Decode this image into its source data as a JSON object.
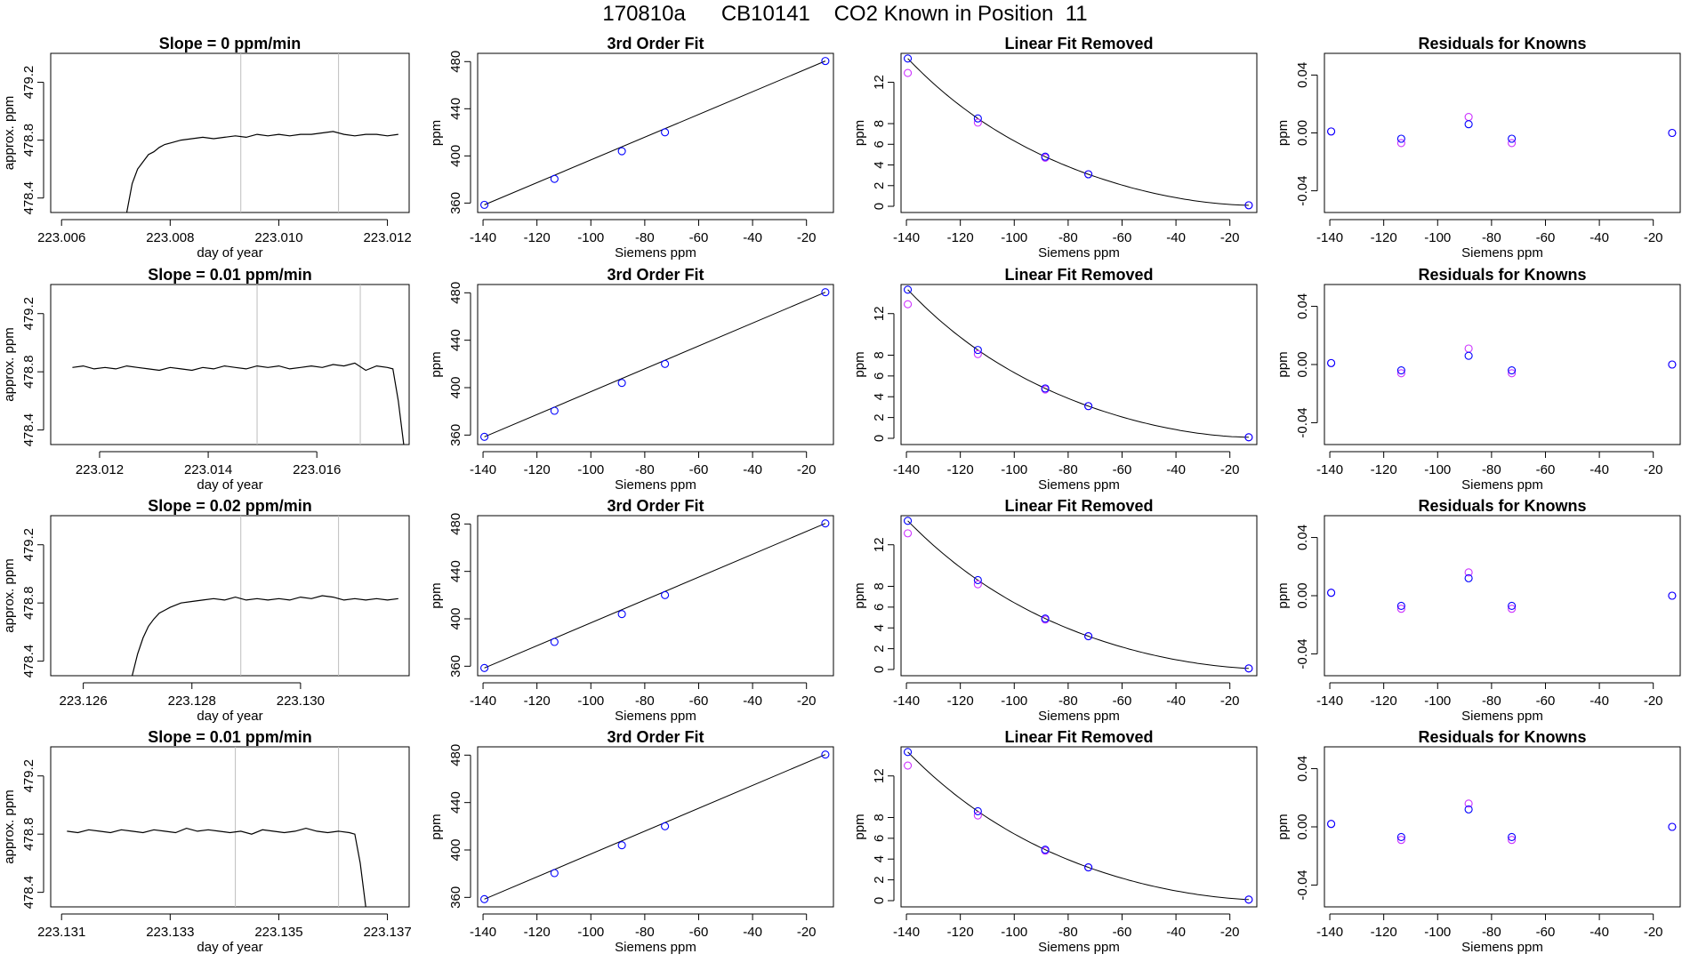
{
  "title": "170810a      CB10141    CO2 Known in Position  11",
  "colors": {
    "line": "#000000",
    "vline": "#bebebe",
    "measured": "#0000ff",
    "reference": "#cc33ff"
  },
  "chart_data": [
    {
      "type": "line",
      "title": "Slope =  0  ppm/min",
      "xlabel": "day of year",
      "ylabel": "approx. ppm",
      "xlim": [
        223.0058,
        223.0124
      ],
      "ylim": [
        478.3,
        479.4
      ],
      "xticks": [
        223.006,
        223.008,
        223.01,
        223.012
      ],
      "xtick_labels": [
        "223.006",
        "223.008",
        "223.010",
        "223.012"
      ],
      "yticks": [
        478.4,
        478.8,
        479.2
      ],
      "ytick_labels": [
        "478.4",
        "478.8",
        "479.2"
      ],
      "vlines": [
        223.0093,
        223.0111
      ],
      "x": [
        223.0072,
        223.0073,
        223.0074,
        223.0075,
        223.0076,
        223.0077,
        223.0078,
        223.0079,
        223.008,
        223.0082,
        223.0084,
        223.0086,
        223.0088,
        223.009,
        223.0092,
        223.0094,
        223.0096,
        223.0098,
        223.01,
        223.0102,
        223.0104,
        223.0106,
        223.0108,
        223.011,
        223.0112,
        223.0114,
        223.0116,
        223.0118,
        223.012,
        223.0122
      ],
      "y": [
        478.3,
        478.5,
        478.6,
        478.65,
        478.7,
        478.72,
        478.75,
        478.77,
        478.78,
        478.8,
        478.81,
        478.82,
        478.81,
        478.82,
        478.83,
        478.82,
        478.84,
        478.83,
        478.84,
        478.83,
        478.84,
        478.84,
        478.85,
        478.86,
        478.84,
        478.83,
        478.84,
        478.84,
        478.83,
        478.84
      ]
    },
    {
      "type": "scatter",
      "title": "3rd Order Fit",
      "xlabel": "Siemens ppm",
      "ylabel": "ppm",
      "xlim": [
        -142,
        -10
      ],
      "ylim": [
        352,
        487
      ],
      "xticks": [
        -140,
        -120,
        -100,
        -80,
        -60,
        -40,
        -20
      ],
      "xtick_labels": [
        "-140",
        "-120",
        "-100",
        "-80",
        "-60",
        "-40",
        "-20"
      ],
      "yticks": [
        360,
        400,
        440,
        480
      ],
      "ytick_labels": [
        "360",
        "400",
        "440",
        "480"
      ],
      "x": [
        -139.5,
        -113.5,
        -88.5,
        -72.5,
        -13
      ],
      "y": [
        358.5,
        380.5,
        404,
        420,
        480.5
      ],
      "fit": "cubic"
    },
    {
      "type": "scatter",
      "title": "Linear Fit Removed",
      "xlabel": "Siemens ppm",
      "ylabel": "ppm",
      "xlim": [
        -142,
        -10
      ],
      "ylim": [
        -0.6,
        14.8
      ],
      "xticks": [
        -140,
        -120,
        -100,
        -80,
        -60,
        -40,
        -20
      ],
      "xtick_labels": [
        "-140",
        "-120",
        "-100",
        "-80",
        "-60",
        "-40",
        "-20"
      ],
      "yticks": [
        0,
        2,
        4,
        6,
        8,
        12
      ],
      "ytick_labels": [
        "0",
        "2",
        "4",
        "6",
        "8",
        "12"
      ],
      "x": [
        -139.5,
        -113.5,
        -88.5,
        -72.5,
        -13
      ],
      "y": [
        14.3,
        8.5,
        4.8,
        3.1,
        0.1
      ],
      "y_ref": [
        12.9,
        8.1,
        4.7,
        3.1,
        0.1
      ]
    },
    {
      "type": "scatter",
      "title": "Residuals for Knowns",
      "xlabel": "Siemens ppm",
      "ylabel": "ppm",
      "xlim": [
        -142,
        -10
      ],
      "ylim": [
        -0.055,
        0.055
      ],
      "xticks": [
        -140,
        -120,
        -100,
        -80,
        -60,
        -40,
        -20
      ],
      "xtick_labels": [
        "-140",
        "-120",
        "-100",
        "-80",
        "-60",
        "-40",
        "-20"
      ],
      "yticks": [
        -0.04,
        0.0,
        0.04
      ],
      "ytick_labels": [
        "-0.04",
        "0.00",
        "0.04"
      ],
      "x": [
        -139.5,
        -113.5,
        -88.5,
        -72.5,
        -13
      ],
      "y": [
        0.001,
        -0.004,
        0.006,
        -0.004,
        0.0
      ],
      "y_ref": [
        0.001,
        -0.007,
        0.011,
        -0.007,
        0.0
      ]
    },
    {
      "type": "line",
      "title": "Slope =  0.01  ppm/min",
      "xlabel": "day of year",
      "ylabel": "approx. ppm",
      "xlim": [
        223.0111,
        223.0177
      ],
      "ylim": [
        478.3,
        479.4
      ],
      "xticks": [
        223.012,
        223.014,
        223.016
      ],
      "xtick_labels": [
        "223.012",
        "223.014",
        "223.016"
      ],
      "yticks": [
        478.4,
        478.8,
        479.2
      ],
      "ytick_labels": [
        "478.4",
        "478.8",
        "479.2"
      ],
      "vlines": [
        223.0149,
        223.0168
      ],
      "x": [
        223.0115,
        223.0117,
        223.0119,
        223.0121,
        223.0123,
        223.0125,
        223.0127,
        223.0129,
        223.0131,
        223.0133,
        223.0135,
        223.0137,
        223.0139,
        223.0141,
        223.0143,
        223.0145,
        223.0147,
        223.0149,
        223.0151,
        223.0153,
        223.0155,
        223.0157,
        223.0159,
        223.0161,
        223.0163,
        223.0165,
        223.0167,
        223.0169,
        223.0171,
        223.0173,
        223.0174,
        223.0175,
        223.0176
      ],
      "y": [
        478.83,
        478.84,
        478.82,
        478.83,
        478.82,
        478.84,
        478.83,
        478.82,
        478.81,
        478.83,
        478.82,
        478.81,
        478.83,
        478.82,
        478.84,
        478.83,
        478.82,
        478.84,
        478.83,
        478.84,
        478.82,
        478.83,
        478.84,
        478.83,
        478.85,
        478.84,
        478.86,
        478.81,
        478.84,
        478.83,
        478.82,
        478.6,
        478.3
      ]
    },
    {
      "type": "scatter",
      "title": "3rd Order Fit",
      "xlabel": "Siemens ppm",
      "ylabel": "ppm",
      "xlim": [
        -142,
        -10
      ],
      "ylim": [
        352,
        487
      ],
      "xticks": [
        -140,
        -120,
        -100,
        -80,
        -60,
        -40,
        -20
      ],
      "xtick_labels": [
        "-140",
        "-120",
        "-100",
        "-80",
        "-60",
        "-40",
        "-20"
      ],
      "yticks": [
        360,
        400,
        440,
        480
      ],
      "ytick_labels": [
        "360",
        "400",
        "440",
        "480"
      ],
      "x": [
        -139.5,
        -113.5,
        -88.5,
        -72.5,
        -13
      ],
      "y": [
        358.5,
        380.5,
        404,
        420,
        480.5
      ],
      "fit": "cubic"
    },
    {
      "type": "scatter",
      "title": "Linear Fit Removed",
      "xlabel": "Siemens ppm",
      "ylabel": "ppm",
      "xlim": [
        -142,
        -10
      ],
      "ylim": [
        -0.6,
        14.8
      ],
      "xticks": [
        -140,
        -120,
        -100,
        -80,
        -60,
        -40,
        -20
      ],
      "xtick_labels": [
        "-140",
        "-120",
        "-100",
        "-80",
        "-60",
        "-40",
        "-20"
      ],
      "yticks": [
        0,
        2,
        4,
        6,
        8,
        12
      ],
      "ytick_labels": [
        "0",
        "2",
        "4",
        "6",
        "8",
        "12"
      ],
      "x": [
        -139.5,
        -113.5,
        -88.5,
        -72.5,
        -13
      ],
      "y": [
        14.3,
        8.5,
        4.8,
        3.1,
        0.1
      ],
      "y_ref": [
        12.9,
        8.1,
        4.7,
        3.1,
        0.1
      ]
    },
    {
      "type": "scatter",
      "title": "Residuals for Knowns",
      "xlabel": "Siemens ppm",
      "ylabel": "ppm",
      "xlim": [
        -142,
        -10
      ],
      "ylim": [
        -0.055,
        0.055
      ],
      "xticks": [
        -140,
        -120,
        -100,
        -80,
        -60,
        -40,
        -20
      ],
      "xtick_labels": [
        "-140",
        "-120",
        "-100",
        "-80",
        "-60",
        "-40",
        "-20"
      ],
      "yticks": [
        -0.04,
        0.0,
        0.04
      ],
      "ytick_labels": [
        "-0.04",
        "0.00",
        "0.04"
      ],
      "x": [
        -139.5,
        -113.5,
        -88.5,
        -72.5,
        -13
      ],
      "y": [
        0.001,
        -0.004,
        0.006,
        -0.004,
        0.0
      ],
      "y_ref": [
        0.001,
        -0.006,
        0.011,
        -0.006,
        0.0
      ]
    },
    {
      "type": "line",
      "title": "Slope =  0.02  ppm/min",
      "xlabel": "day of year",
      "ylabel": "approx. ppm",
      "xlim": [
        223.1254,
        223.132
      ],
      "ylim": [
        478.3,
        479.4
      ],
      "xticks": [
        223.126,
        223.128,
        223.13
      ],
      "xtick_labels": [
        "223.126",
        "223.128",
        "223.130"
      ],
      "yticks": [
        478.4,
        478.8,
        479.2
      ],
      "ytick_labels": [
        "478.4",
        "478.8",
        "479.2"
      ],
      "vlines": [
        223.1289,
        223.1307
      ],
      "x": [
        223.1269,
        223.127,
        223.1271,
        223.1272,
        223.1273,
        223.1274,
        223.1275,
        223.1276,
        223.1278,
        223.128,
        223.1282,
        223.1284,
        223.1286,
        223.1288,
        223.129,
        223.1292,
        223.1294,
        223.1296,
        223.1298,
        223.13,
        223.1302,
        223.1304,
        223.1306,
        223.1308,
        223.131,
        223.1312,
        223.1314,
        223.1316,
        223.1318
      ],
      "y": [
        478.3,
        478.45,
        478.56,
        478.64,
        478.69,
        478.73,
        478.75,
        478.77,
        478.8,
        478.81,
        478.82,
        478.83,
        478.82,
        478.84,
        478.82,
        478.83,
        478.82,
        478.83,
        478.82,
        478.84,
        478.83,
        478.85,
        478.84,
        478.82,
        478.83,
        478.82,
        478.83,
        478.82,
        478.83
      ]
    },
    {
      "type": "scatter",
      "title": "3rd Order Fit",
      "xlabel": "Siemens ppm",
      "ylabel": "ppm",
      "xlim": [
        -142,
        -10
      ],
      "ylim": [
        352,
        487
      ],
      "xticks": [
        -140,
        -120,
        -100,
        -80,
        -60,
        -40,
        -20
      ],
      "xtick_labels": [
        "-140",
        "-120",
        "-100",
        "-80",
        "-60",
        "-40",
        "-20"
      ],
      "yticks": [
        360,
        400,
        440,
        480
      ],
      "ytick_labels": [
        "360",
        "400",
        "440",
        "480"
      ],
      "x": [
        -139.5,
        -113.5,
        -88.5,
        -72.5,
        -13
      ],
      "y": [
        358.5,
        380.5,
        404,
        420,
        480.5
      ],
      "fit": "cubic"
    },
    {
      "type": "scatter",
      "title": "Linear Fit Removed",
      "xlabel": "Siemens ppm",
      "ylabel": "ppm",
      "xlim": [
        -142,
        -10
      ],
      "ylim": [
        -0.6,
        14.8
      ],
      "xticks": [
        -140,
        -120,
        -100,
        -80,
        -60,
        -40,
        -20
      ],
      "xtick_labels": [
        "-140",
        "-120",
        "-100",
        "-80",
        "-60",
        "-40",
        "-20"
      ],
      "yticks": [
        0,
        2,
        4,
        6,
        8,
        12
      ],
      "ytick_labels": [
        "0",
        "2",
        "4",
        "6",
        "8",
        "12"
      ],
      "x": [
        -139.5,
        -113.5,
        -88.5,
        -72.5,
        -13
      ],
      "y": [
        14.3,
        8.6,
        4.9,
        3.2,
        0.1
      ],
      "y_ref": [
        13.1,
        8.2,
        4.8,
        3.2,
        0.1
      ]
    },
    {
      "type": "scatter",
      "title": "Residuals for Knowns",
      "xlabel": "Siemens ppm",
      "ylabel": "ppm",
      "xlim": [
        -142,
        -10
      ],
      "ylim": [
        -0.055,
        0.055
      ],
      "xticks": [
        -140,
        -120,
        -100,
        -80,
        -60,
        -40,
        -20
      ],
      "xtick_labels": [
        "-140",
        "-120",
        "-100",
        "-80",
        "-60",
        "-40",
        "-20"
      ],
      "yticks": [
        -0.04,
        0.0,
        0.04
      ],
      "ytick_labels": [
        "-0.04",
        "0.00",
        "0.04"
      ],
      "x": [
        -139.5,
        -113.5,
        -88.5,
        -72.5,
        -13
      ],
      "y": [
        0.002,
        -0.007,
        0.012,
        -0.007,
        0.0
      ],
      "y_ref": [
        0.002,
        -0.009,
        0.016,
        -0.009,
        0.0
      ]
    },
    {
      "type": "line",
      "title": "Slope =  0.01  ppm/min",
      "xlabel": "day of year",
      "ylabel": "approx. ppm",
      "xlim": [
        223.1308,
        223.1374
      ],
      "ylim": [
        478.3,
        479.4
      ],
      "xticks": [
        223.131,
        223.133,
        223.135,
        223.137
      ],
      "xtick_labels": [
        "223.131",
        "223.133",
        "223.135",
        "223.137"
      ],
      "yticks": [
        478.4,
        478.8,
        479.2
      ],
      "ytick_labels": [
        "478.4",
        "478.8",
        "479.2"
      ],
      "vlines": [
        223.1342,
        223.1361
      ],
      "x": [
        223.1311,
        223.1313,
        223.1315,
        223.1317,
        223.1319,
        223.1321,
        223.1323,
        223.1325,
        223.1327,
        223.1329,
        223.1331,
        223.1333,
        223.1335,
        223.1337,
        223.1339,
        223.1341,
        223.1343,
        223.1345,
        223.1347,
        223.1349,
        223.1351,
        223.1353,
        223.1355,
        223.1357,
        223.1359,
        223.1361,
        223.1363,
        223.1364,
        223.1365,
        223.1366
      ],
      "y": [
        478.82,
        478.81,
        478.83,
        478.82,
        478.81,
        478.83,
        478.82,
        478.81,
        478.83,
        478.82,
        478.81,
        478.84,
        478.82,
        478.83,
        478.82,
        478.81,
        478.82,
        478.8,
        478.83,
        478.82,
        478.81,
        478.82,
        478.84,
        478.82,
        478.81,
        478.82,
        478.81,
        478.8,
        478.6,
        478.3
      ]
    },
    {
      "type": "scatter",
      "title": "3rd Order Fit",
      "xlabel": "Siemens ppm",
      "ylabel": "ppm",
      "xlim": [
        -142,
        -10
      ],
      "ylim": [
        352,
        487
      ],
      "xticks": [
        -140,
        -120,
        -100,
        -80,
        -60,
        -40,
        -20
      ],
      "xtick_labels": [
        "-140",
        "-120",
        "-100",
        "-80",
        "-60",
        "-40",
        "-20"
      ],
      "yticks": [
        360,
        400,
        440,
        480
      ],
      "ytick_labels": [
        "360",
        "400",
        "440",
        "480"
      ],
      "x": [
        -139.5,
        -113.5,
        -88.5,
        -72.5,
        -13
      ],
      "y": [
        358.5,
        380.5,
        404,
        420,
        480.5
      ],
      "fit": "cubic"
    },
    {
      "type": "scatter",
      "title": "Linear Fit Removed",
      "xlabel": "Siemens ppm",
      "ylabel": "ppm",
      "xlim": [
        -142,
        -10
      ],
      "ylim": [
        -0.6,
        14.8
      ],
      "xticks": [
        -140,
        -120,
        -100,
        -80,
        -60,
        -40,
        -20
      ],
      "xtick_labels": [
        "-140",
        "-120",
        "-100",
        "-80",
        "-60",
        "-40",
        "-20"
      ],
      "yticks": [
        0,
        2,
        4,
        6,
        8,
        12
      ],
      "ytick_labels": [
        "0",
        "2",
        "4",
        "6",
        "8",
        "12"
      ],
      "x": [
        -139.5,
        -113.5,
        -88.5,
        -72.5,
        -13
      ],
      "y": [
        14.3,
        8.6,
        4.9,
        3.2,
        0.1
      ],
      "y_ref": [
        13.0,
        8.2,
        4.8,
        3.2,
        0.1
      ]
    },
    {
      "type": "scatter",
      "title": "Residuals for Knowns",
      "xlabel": "Siemens ppm",
      "ylabel": "ppm",
      "xlim": [
        -142,
        -10
      ],
      "ylim": [
        -0.055,
        0.055
      ],
      "xticks": [
        -140,
        -120,
        -100,
        -80,
        -60,
        -40,
        -20
      ],
      "xtick_labels": [
        "-140",
        "-120",
        "-100",
        "-80",
        "-60",
        "-40",
        "-20"
      ],
      "yticks": [
        -0.04,
        0.0,
        0.04
      ],
      "ytick_labels": [
        "-0.04",
        "0.00",
        "0.04"
      ],
      "x": [
        -139.5,
        -113.5,
        -88.5,
        -72.5,
        -13
      ],
      "y": [
        0.002,
        -0.007,
        0.012,
        -0.007,
        0.0
      ],
      "y_ref": [
        0.002,
        -0.009,
        0.016,
        -0.009,
        0.0
      ]
    }
  ]
}
